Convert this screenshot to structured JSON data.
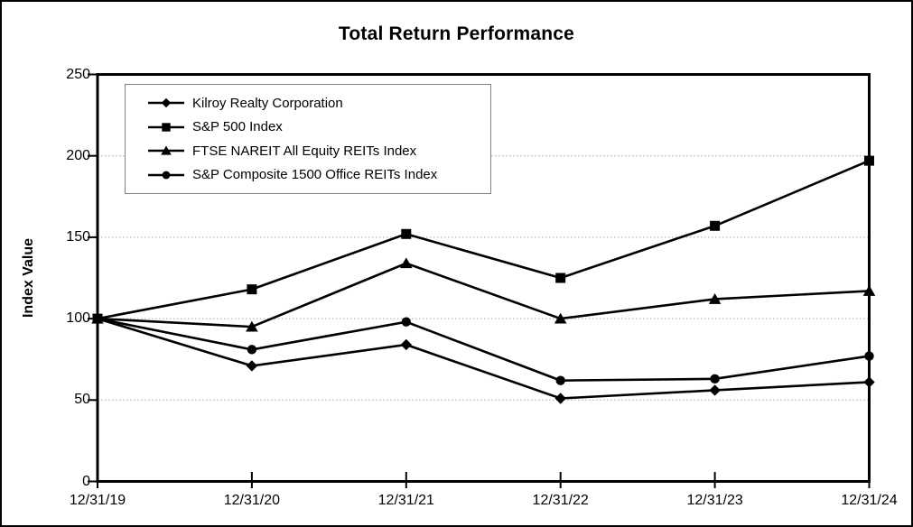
{
  "chart_data": {
    "type": "line",
    "title": "Total Return Performance",
    "ylabel": "Index Value",
    "xlabel": "",
    "categories": [
      "12/31/19",
      "12/31/20",
      "12/31/21",
      "12/31/22",
      "12/31/23",
      "12/31/24"
    ],
    "yticks": [
      0,
      50,
      100,
      150,
      200,
      250
    ],
    "ylim": [
      0,
      250
    ],
    "grid": "horizontal-dotted",
    "legend_position": "top-left-inside",
    "series": [
      {
        "name": "Kilroy Realty Corporation",
        "marker": "diamond",
        "values": [
          100,
          71,
          84,
          51,
          56,
          61
        ]
      },
      {
        "name": "S&P 500 Index",
        "marker": "square",
        "values": [
          100,
          118,
          152,
          125,
          157,
          197
        ]
      },
      {
        "name": "FTSE NAREIT All Equity REITs Index",
        "marker": "triangle",
        "values": [
          100,
          95,
          134,
          100,
          112,
          117
        ]
      },
      {
        "name": "S&P Composite 1500 Office REITs Index",
        "marker": "circle",
        "values": [
          100,
          81,
          98,
          62,
          63,
          77
        ]
      }
    ],
    "colors": {
      "line": "#000000",
      "marker": "#000000",
      "frame": "#000000",
      "grid": "#a6a6a6",
      "legend_border": "#808080",
      "background": "#ffffff"
    }
  }
}
